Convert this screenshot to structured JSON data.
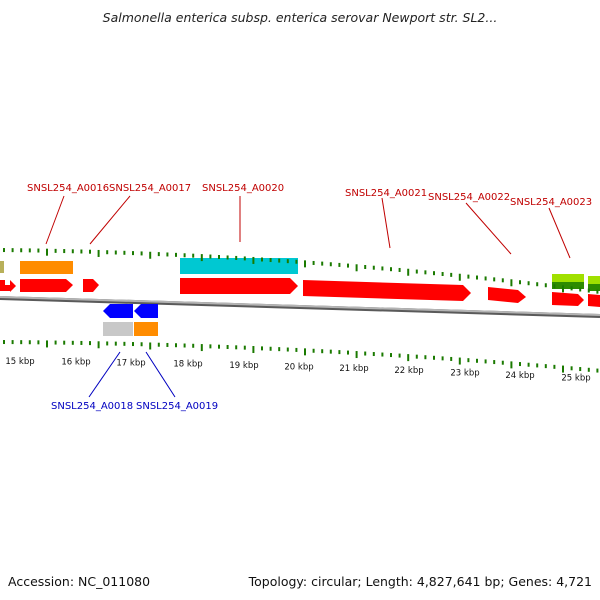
{
  "title": "Salmonella enterica subsp. enterica serovar Newport str. SL2...",
  "footer": {
    "accession": "Accession: NC_011080",
    "summary": "Topology: circular; Length: 4,827,641 bp; Genes: 4,721"
  },
  "colors": {
    "red": "#ff0000",
    "orange": "#ff8c00",
    "cyan": "#00c8d2",
    "blue": "#0000ff",
    "gray": "#c8c8c8",
    "green_dark": "#2e8b00",
    "green_light": "#a0e000",
    "tick_green": "#1a7a00",
    "label_red": "#c00000",
    "label_blue": "#0000c0",
    "backbone": "#8a8a8a"
  },
  "scale_ticks": [
    "15 kbp",
    "16 kbp",
    "17 kbp",
    "18 kbp",
    "19 kbp",
    "20 kbp",
    "21 kbp",
    "22 kbp",
    "23 kbp",
    "24 kbp",
    "25 kbp"
  ],
  "gene_labels_top": [
    "SNSL254_A0016",
    "SNSL254_A0017",
    "SNSL254_A0020",
    "SNSL254_A0021",
    "SNSL254_A0022",
    "SNSL254_A0023"
  ],
  "gene_labels_bottom": [
    "SNSL254_A0018",
    "SNSL254_A0019"
  ]
}
